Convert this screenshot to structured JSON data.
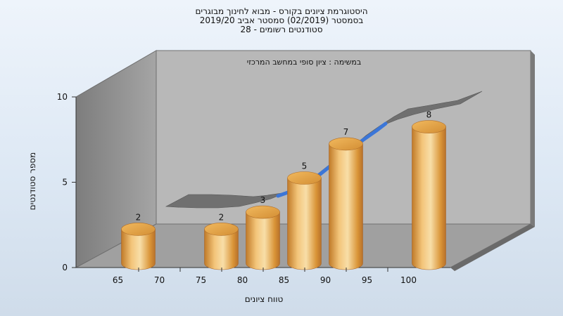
{
  "chart_data": {
    "type": "bar",
    "title_lines": [
      "היסטוגרמת ציונים בקורס - מבוא לחינוך מבוגרים",
      "בסמסטר  (02/2019)  סמסטר אביב 2019/20",
      "סטודנטים רשומים - 28"
    ],
    "annotation": "במשימה : ציון סופי במחשב המרכזי",
    "xlabel": "טווח ציונים",
    "ylabel": "מספר סטודנטים",
    "x_ticks": [
      "65",
      "70",
      "75",
      "80",
      "85",
      "90",
      "95",
      "100"
    ],
    "y_ticks": [
      "0",
      "5",
      "10"
    ],
    "ylim": [
      0,
      10
    ],
    "categories": [
      65,
      75,
      80,
      85,
      90,
      100
    ],
    "values": [
      2,
      2,
      3,
      5,
      7,
      8
    ],
    "data_labels": [
      "2",
      "2",
      "3",
      "5",
      "7",
      "8"
    ],
    "grid": false,
    "colors": {
      "bar": "#e0a040",
      "bar_light": "#f6d89c",
      "bar_dark": "#b9762a",
      "back_wall": "#b9b9b9",
      "side_wall": "#8c8c8c",
      "floor": "#9d9d9d",
      "ribbon": "#6e6e6e",
      "ribbon_accent": "#3b76d8"
    }
  }
}
